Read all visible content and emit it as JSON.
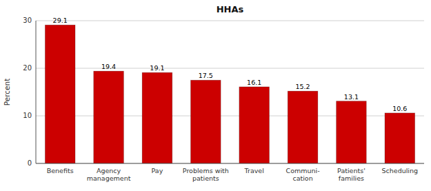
{
  "chart_data": {
    "type": "bar",
    "title": "HHAs",
    "ylabel": "Percent",
    "categories": [
      "Benefits",
      "Agency\nmanagement",
      "Pay",
      "Problems with\npatients",
      "Travel",
      "Communi-\ncation",
      "Patients'\nfamilies",
      "Scheduling"
    ],
    "values": [
      29.1,
      19.4,
      19.1,
      17.5,
      16.1,
      15.2,
      13.1,
      10.6
    ],
    "color": "#cc0000",
    "ylim": [
      0,
      30
    ],
    "yticks": [
      0,
      10,
      20,
      30
    ],
    "grid": true,
    "data_labels": true
  }
}
